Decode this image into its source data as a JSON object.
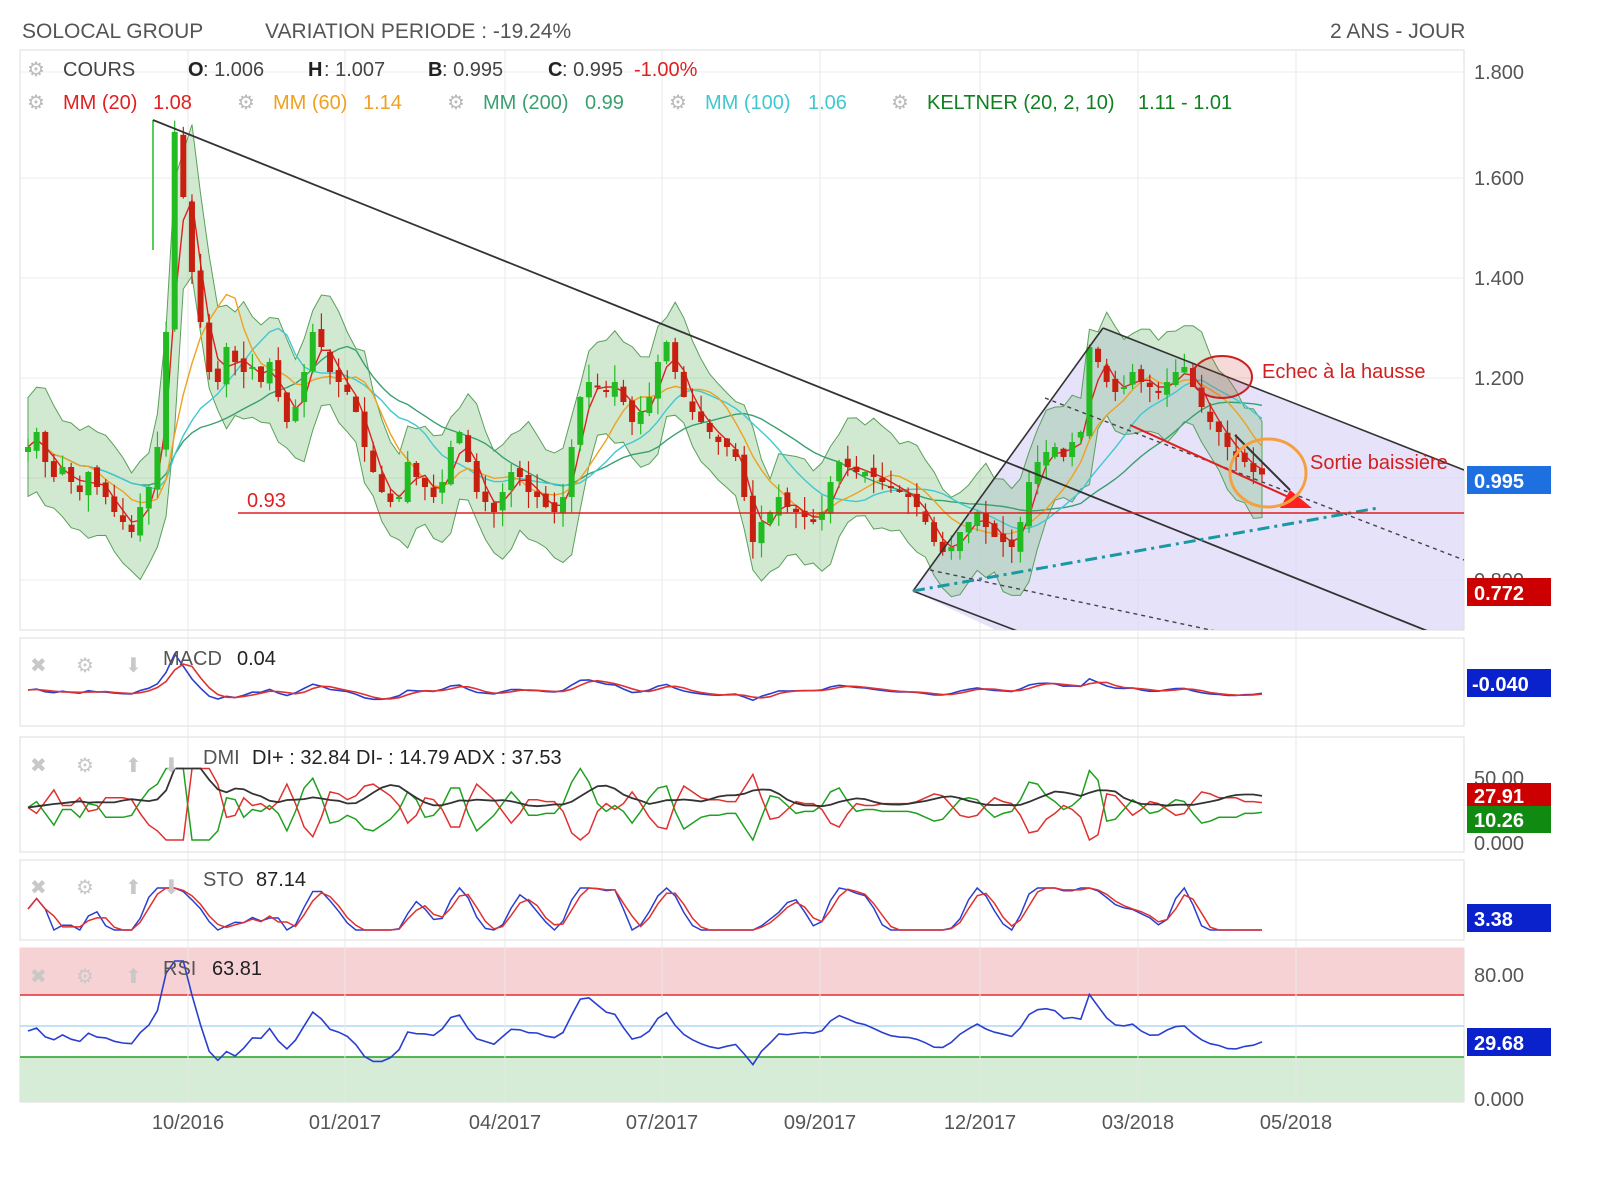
{
  "header": {
    "title": "SOLOCAL GROUP",
    "variation": "VARIATION PERIODE : -19.24%",
    "period": "2 ANS - JOUR"
  },
  "quote": {
    "label": "COURS",
    "o_key": "O",
    "o_val": ": 1.006",
    "h_key": "H",
    "h_val": ": 1.007",
    "b_key": "B",
    "b_val": ": 0.995",
    "c_key": "C",
    "c_val": ": 0.995",
    "change": "-1.00%"
  },
  "indicators": [
    {
      "name": "MM (20)",
      "value": "1.08",
      "color": "#e02020"
    },
    {
      "name": "MM (60)",
      "value": "1.14",
      "color": "#f0a020"
    },
    {
      "name": "MM (200)",
      "value": "0.99",
      "color": "#3aa070"
    },
    {
      "name": "MM (100)",
      "value": "1.06",
      "color": "#40c8d0"
    },
    {
      "name": "KELTNER (20, 2, 10)",
      "value": "1.11 - 1.01",
      "color": "#108020"
    }
  ],
  "annotations": {
    "level_093": "0.93",
    "echec": "Echec à la hausse",
    "sortie": "Sortie baissière"
  },
  "panels": {
    "macd": {
      "name": "MACD",
      "value": "0.04",
      "badge": "-0.040"
    },
    "dmi": {
      "name": "DMI",
      "value": "DI+ : 32.84 DI- : 14.79 ADX : 37.53",
      "badge_red": "27.91",
      "badge_green": "10.26"
    },
    "sto": {
      "name": "STO",
      "value": "87.14",
      "badge": "3.38"
    },
    "rsi": {
      "name": "RSI",
      "value": "63.81",
      "badge": "29.68"
    }
  },
  "colors": {
    "up": "#22bb22",
    "down": "#c82010",
    "price_badge": "#1e70e0",
    "low_badge": "#cc0000",
    "macd_badge": "#0a22cc"
  },
  "chart_data": {
    "type": "candlestick",
    "x_tick_labels": [
      "10/2016",
      "01/2017",
      "04/2017",
      "07/2017",
      "09/2017",
      "12/2017",
      "03/2018",
      "05/2018"
    ],
    "y_tick_labels": [
      "1.800",
      "1.600",
      "1.400",
      "1.200",
      "0.800"
    ],
    "ylim": [
      0.7,
      1.85
    ],
    "last_price": "0.995",
    "low_marker": "0.772",
    "support_level": 0.93,
    "close_series": [
      1.05,
      1.08,
      1.02,
      0.99,
      1.01,
      0.98,
      0.96,
      1.0,
      0.97,
      0.95,
      0.92,
      0.9,
      0.88,
      0.93,
      0.97,
      1.05,
      1.28,
      1.68,
      1.55,
      1.4,
      1.3,
      1.2,
      1.18,
      1.25,
      1.22,
      1.2,
      1.21,
      1.18,
      1.22,
      1.15,
      1.1,
      1.13,
      1.2,
      1.28,
      1.25,
      1.2,
      1.18,
      1.16,
      1.12,
      1.05,
      1.0,
      0.96,
      0.94,
      0.95,
      1.02,
      0.99,
      0.97,
      0.95,
      0.98,
      1.05,
      1.08,
      1.02,
      0.96,
      0.94,
      0.92,
      0.96,
      1.0,
      0.99,
      0.96,
      0.95,
      0.93,
      0.92,
      0.95,
      1.05,
      1.15,
      1.18,
      1.17,
      1.16,
      1.18,
      1.14,
      1.1,
      1.12,
      1.15,
      1.22,
      1.26,
      1.2,
      1.15,
      1.12,
      1.1,
      1.08,
      1.06,
      1.05,
      1.03,
      0.95,
      0.86,
      0.9,
      0.92,
      0.95,
      0.93,
      0.92,
      0.91,
      0.9,
      0.92,
      0.98,
      1.02,
      1.01,
      1.0,
      1.0,
      0.99,
      0.98,
      0.97,
      0.96,
      0.95,
      0.93,
      0.9,
      0.86,
      0.84,
      0.85,
      0.88,
      0.9,
      0.92,
      0.89,
      0.87,
      0.86,
      0.85,
      0.9,
      0.98,
      1.02,
      1.04,
      1.05,
      1.03,
      1.06,
      1.08,
      1.25,
      1.22,
      1.18,
      1.16,
      1.17,
      1.2,
      1.18,
      1.17,
      1.16,
      1.18,
      1.2,
      1.21,
      1.17,
      1.13,
      1.1,
      1.08,
      1.05,
      1.03,
      1.02,
      1.0,
      0.995
    ],
    "macd_value": 0.04,
    "dmi": {
      "di_plus": 32.84,
      "di_minus": 14.79,
      "adx": 37.53
    },
    "sto_value": 87.14,
    "rsi_value": 63.81,
    "rsi_levels": {
      "overbought": 70,
      "oversold": 30
    },
    "panel_y_ticks": {
      "dmi": [
        "50.00",
        "0.000"
      ],
      "rsi": [
        "80.00",
        "0.000"
      ]
    }
  }
}
